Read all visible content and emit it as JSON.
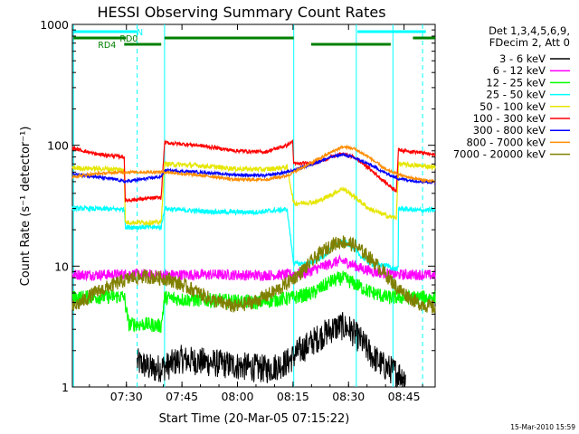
{
  "chart_data": {
    "type": "line",
    "title": "HESSI Observing Summary Count Rates",
    "xlabel": "Start Time (20-Mar-05 07:15:22)",
    "ylabel": "Count Rate (s⁻¹ detector⁻¹)",
    "y_scale": "log",
    "ylim": [
      1,
      1000
    ],
    "xlim_minutes_after_start": [
      0,
      98
    ],
    "x_ticks": [
      {
        "label": "07:30",
        "minute": 14.6
      },
      {
        "label": "07:45",
        "minute": 29.6
      },
      {
        "label": "08:00",
        "minute": 44.6
      },
      {
        "label": "08:15",
        "minute": 59.6
      },
      {
        "label": "08:30",
        "minute": 74.6
      },
      {
        "label": "08:45",
        "minute": 89.6
      }
    ],
    "y_ticks": [
      {
        "label": "1",
        "value": 1
      },
      {
        "label": "10",
        "value": 10
      },
      {
        "label": "100",
        "value": 100
      },
      {
        "label": "1000",
        "value": 1000
      }
    ],
    "legend": {
      "header": [
        "Det 1,3,4,5,6,9,",
        "FDecim 2, Att 0"
      ],
      "position": "right"
    },
    "series": [
      {
        "name": "3 - 6 keV",
        "color": "#000000",
        "points": [
          [
            17.5,
            1.6
          ],
          [
            22,
            1.4
          ],
          [
            26,
            1.5
          ],
          [
            29,
            1.7
          ],
          [
            52.8,
            1.4
          ],
          [
            58,
            1.6
          ],
          [
            61.5,
            2.0
          ],
          [
            66,
            2.5
          ],
          [
            70,
            3.0
          ],
          [
            72.6,
            3.2
          ],
          [
            75,
            3.0
          ],
          [
            78,
            2.4
          ],
          [
            81,
            1.8
          ],
          [
            84,
            1.5
          ],
          [
            90,
            1.2
          ]
        ]
      },
      {
        "name": "6 - 12 keV",
        "color": "#ff00ff",
        "points": [
          [
            0,
            8.5
          ],
          [
            10,
            8.5
          ],
          [
            16,
            8.6
          ],
          [
            22,
            8.4
          ],
          [
            30,
            8.5
          ],
          [
            40,
            8.5
          ],
          [
            50,
            8.4
          ],
          [
            58,
            8.5
          ],
          [
            63,
            8.8
          ],
          [
            67,
            9.8
          ],
          [
            71,
            10.8
          ],
          [
            73,
            11.0
          ],
          [
            75,
            10.5
          ],
          [
            78,
            9.6
          ],
          [
            82,
            8.9
          ],
          [
            88,
            8.5
          ],
          [
            94,
            8.5
          ],
          [
            98,
            8.4
          ]
        ]
      },
      {
        "name": "12 - 25 keV",
        "color": "#00ff00",
        "points": [
          [
            0,
            5.5
          ],
          [
            14,
            5.6
          ],
          [
            15.2,
            3.3
          ],
          [
            20,
            3.3
          ],
          [
            24,
            3.2
          ],
          [
            24.9,
            5.5
          ],
          [
            30,
            5.3
          ],
          [
            40,
            5.2
          ],
          [
            50,
            5.0
          ],
          [
            60,
            5.5
          ],
          [
            65,
            6.0
          ],
          [
            70,
            7.5
          ],
          [
            73,
            8.0
          ],
          [
            76,
            7.2
          ],
          [
            80,
            6.2
          ],
          [
            85,
            5.5
          ],
          [
            90,
            5.5
          ],
          [
            98,
            5.5
          ]
        ]
      },
      {
        "name": "25 - 50 keV",
        "color": "#00ffff",
        "points": [
          [
            0,
            30
          ],
          [
            14,
            29.5
          ],
          [
            14.4,
            21
          ],
          [
            24,
            21
          ],
          [
            24.9,
            30
          ],
          [
            30,
            29
          ],
          [
            40,
            28
          ],
          [
            50,
            28
          ],
          [
            58,
            29.5
          ],
          [
            59.8,
            10.5
          ],
          [
            64,
            10.5
          ],
          [
            68,
            12
          ],
          [
            71,
            15
          ],
          [
            73,
            16
          ],
          [
            75,
            15
          ],
          [
            78,
            12
          ],
          [
            81,
            10.4
          ],
          [
            86,
            10
          ],
          [
            86.2,
            9.5
          ],
          [
            88,
            9.5
          ],
          [
            88.1,
            30
          ],
          [
            93,
            29
          ],
          [
            98,
            29
          ]
        ]
      },
      {
        "name": "50 - 100 keV",
        "color": "#e6e600",
        "points": [
          [
            0,
            65
          ],
          [
            14,
            63
          ],
          [
            14.3,
            23
          ],
          [
            24,
            23
          ],
          [
            24.9,
            70
          ],
          [
            34,
            68
          ],
          [
            44,
            64
          ],
          [
            52,
            63
          ],
          [
            58,
            66
          ],
          [
            59.8,
            33
          ],
          [
            66,
            34
          ],
          [
            70,
            39
          ],
          [
            73,
            44
          ],
          [
            76,
            38
          ],
          [
            80,
            30
          ],
          [
            85,
            26
          ],
          [
            87.5,
            25
          ],
          [
            88.1,
            70
          ],
          [
            93,
            68
          ],
          [
            98,
            66
          ]
        ]
      },
      {
        "name": "100 - 300 keV",
        "color": "#ff0000",
        "points": [
          [
            0,
            95
          ],
          [
            6,
            85
          ],
          [
            14,
            80
          ],
          [
            14.3,
            35
          ],
          [
            24,
            37
          ],
          [
            24.9,
            105
          ],
          [
            34,
            100
          ],
          [
            44,
            90
          ],
          [
            52,
            88
          ],
          [
            58,
            100
          ],
          [
            59.5,
            108
          ],
          [
            59.8,
            70
          ],
          [
            66,
            72
          ],
          [
            70,
            80
          ],
          [
            73,
            85
          ],
          [
            76,
            80
          ],
          [
            80,
            65
          ],
          [
            85,
            48
          ],
          [
            87.5,
            42
          ],
          [
            88.1,
            92
          ],
          [
            93,
            88
          ],
          [
            98,
            83
          ]
        ]
      },
      {
        "name": "300 - 800 keV",
        "color": "#0000ff",
        "points": [
          [
            0,
            58
          ],
          [
            6,
            55
          ],
          [
            12,
            52
          ],
          [
            14,
            50
          ],
          [
            24,
            55
          ],
          [
            24.9,
            62
          ],
          [
            34,
            60
          ],
          [
            44,
            57
          ],
          [
            52,
            56
          ],
          [
            58,
            60
          ],
          [
            59.8,
            62
          ],
          [
            66,
            72
          ],
          [
            70,
            80
          ],
          [
            73,
            84
          ],
          [
            76,
            79
          ],
          [
            80,
            70
          ],
          [
            85,
            58
          ],
          [
            88,
            53
          ],
          [
            92,
            51
          ],
          [
            98,
            49
          ]
        ]
      },
      {
        "name": "800 - 7000 keV",
        "color": "#ff8c00",
        "points": [
          [
            0,
            55
          ],
          [
            6,
            58
          ],
          [
            14,
            60
          ],
          [
            20,
            60
          ],
          [
            24.9,
            60
          ],
          [
            30,
            58
          ],
          [
            38,
            55
          ],
          [
            44,
            52
          ],
          [
            52,
            52
          ],
          [
            58,
            56
          ],
          [
            64,
            70
          ],
          [
            70,
            88
          ],
          [
            73,
            97
          ],
          [
            76,
            94
          ],
          [
            80,
            80
          ],
          [
            85,
            62
          ],
          [
            90,
            55
          ],
          [
            94,
            52
          ],
          [
            98,
            50
          ]
        ]
      },
      {
        "name": "7000 - 20000 keV",
        "color": "#808000",
        "points": [
          [
            0,
            4.5
          ],
          [
            6,
            6.0
          ],
          [
            12,
            7.2
          ],
          [
            16,
            8.0
          ],
          [
            20,
            8.2
          ],
          [
            26,
            7.8
          ],
          [
            32,
            6.5
          ],
          [
            38,
            5.2
          ],
          [
            44,
            4.6
          ],
          [
            50,
            5.2
          ],
          [
            56,
            6.5
          ],
          [
            62,
            9.0
          ],
          [
            66,
            12
          ],
          [
            70,
            15
          ],
          [
            73,
            16
          ],
          [
            76,
            15
          ],
          [
            80,
            12
          ],
          [
            84,
            9.0
          ],
          [
            88,
            6.5
          ],
          [
            93,
            5.0
          ],
          [
            98,
            4.5
          ]
        ]
      }
    ],
    "vertical_lines": [
      {
        "minute": 0.3,
        "style": "solid"
      },
      {
        "minute": 17.5,
        "style": "dashed"
      },
      {
        "minute": 24.9,
        "style": "solid"
      },
      {
        "minute": 59.8,
        "style": "solid"
      },
      {
        "minute": 76.7,
        "style": "solid"
      },
      {
        "minute": 86.6,
        "style": "solid"
      },
      {
        "minute": 94.6,
        "style": "dashed"
      }
    ],
    "flag_bars": [
      {
        "label": "N",
        "color": "#00ffff",
        "y_rank": 1,
        "segments": [
          [
            0.3,
            17.5
          ],
          [
            77,
            95.5
          ]
        ]
      },
      {
        "label": "RD0",
        "color": "#008000",
        "y_rank": 2,
        "segments": [
          [
            0.3,
            14.5
          ],
          [
            24.9,
            59.8
          ],
          [
            92,
            98
          ]
        ]
      },
      {
        "label": "RD4",
        "color": "#008000",
        "y_rank": 3,
        "segments": [
          [
            14,
            24
          ],
          [
            64.5,
            86
          ]
        ]
      }
    ],
    "grid": false
  },
  "footer": {
    "timestamp": "15-Mar-2010 15:59"
  }
}
